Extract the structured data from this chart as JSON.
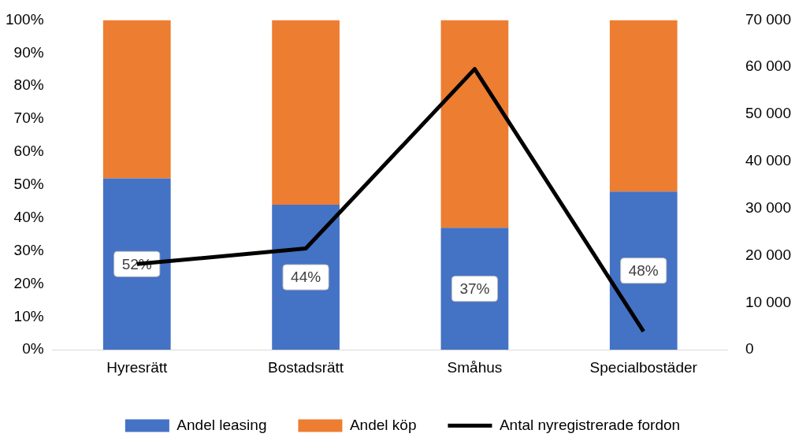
{
  "chart_data": {
    "type": "bar",
    "stacked": true,
    "categories": [
      "Hyresrätt",
      "Bostadsrätt",
      "Småhus",
      "Specialbostäder"
    ],
    "series": [
      {
        "name": "Andel leasing",
        "color": "#4472c4",
        "values": [
          52,
          44,
          37,
          48
        ],
        "value_labels": [
          "52%",
          "44%",
          "37%",
          "48%"
        ]
      },
      {
        "name": "Andel köp",
        "color": "#ed7d31",
        "values": [
          48,
          56,
          63,
          52
        ]
      },
      {
        "name": "Antal nyregistrerade fordon",
        "type": "line",
        "axis": "y2",
        "color": "#000000",
        "values": [
          18200,
          21500,
          59600,
          3900
        ]
      }
    ],
    "ylim": [
      0,
      100
    ],
    "yticks": [
      {
        "value": 0,
        "label": "0%"
      },
      {
        "value": 10,
        "label": "10%"
      },
      {
        "value": 20,
        "label": "20%"
      },
      {
        "value": 30,
        "label": "30%"
      },
      {
        "value": 40,
        "label": "40%"
      },
      {
        "value": 50,
        "label": "50%"
      },
      {
        "value": 60,
        "label": "60%"
      },
      {
        "value": 70,
        "label": "70%"
      },
      {
        "value": 80,
        "label": "80%"
      },
      {
        "value": 90,
        "label": "90%"
      },
      {
        "value": 100,
        "label": "100%"
      }
    ],
    "y2lim": [
      0,
      70000
    ],
    "y2ticks": [
      0,
      {
        "value": 10000,
        "label": "10 000"
      },
      {
        "value": 20000,
        "label": "20 000"
      },
      {
        "value": 30000,
        "label": "30 000"
      },
      {
        "value": 40000,
        "label": "40 000"
      },
      {
        "value": 50000,
        "label": "50 000"
      },
      {
        "value": 60000,
        "label": "60 000"
      },
      {
        "value": 70000,
        "label": "70 000"
      }
    ],
    "grid": false,
    "legend": "bottom",
    "marker": "none",
    "line_style": "solid"
  }
}
